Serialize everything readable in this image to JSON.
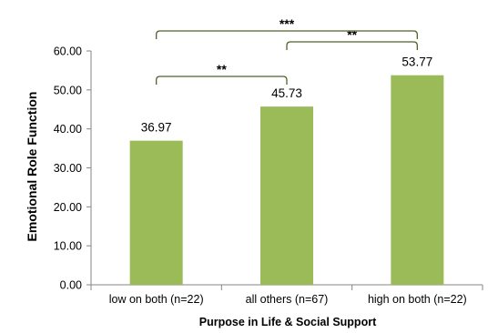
{
  "chart_data": {
    "type": "bar",
    "title": "",
    "xlabel": "Purpose in Life & Social Support",
    "ylabel": "Emotional Role Function",
    "categories": [
      "low on both (n=22)",
      "all others (n=67)",
      "high on both (n=22)"
    ],
    "values": [
      36.97,
      45.73,
      53.77
    ],
    "value_labels": [
      "36.97",
      "45.73",
      "53.77"
    ],
    "ylim": [
      0,
      60
    ],
    "yticks": [
      0,
      10,
      20,
      30,
      40,
      50,
      60
    ],
    "ytick_labels": [
      "0.00",
      "10.00",
      "20.00",
      "30.00",
      "40.00",
      "50.00",
      "60.00"
    ],
    "grid": false,
    "legend": "none",
    "bar_color": "#9bbb59",
    "bracket_color": "#4f6228",
    "significance": [
      {
        "from": 0,
        "to": 1,
        "label": "**"
      },
      {
        "from": 1,
        "to": 2,
        "label": "**"
      },
      {
        "from": 0,
        "to": 2,
        "label": "***"
      }
    ]
  }
}
